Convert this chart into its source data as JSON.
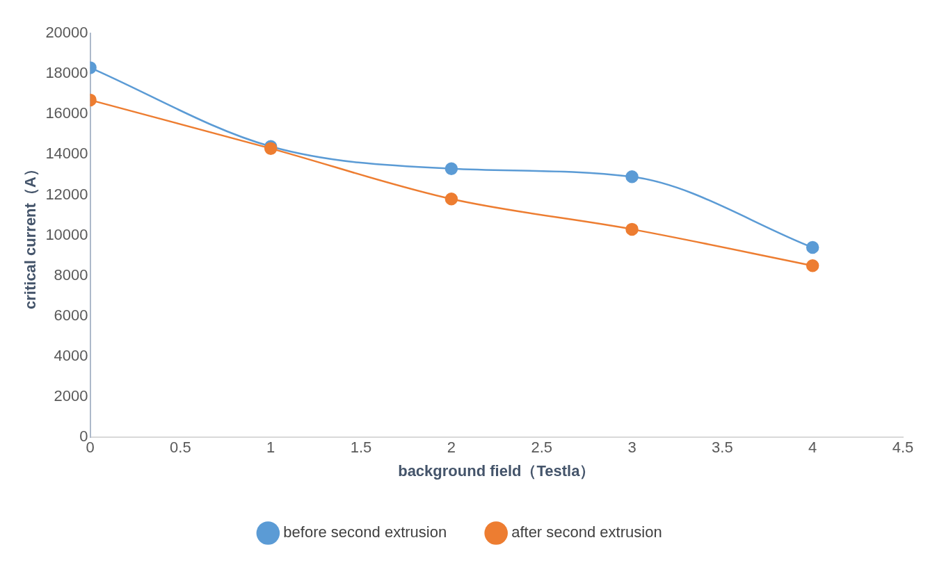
{
  "chart_data": {
    "type": "line",
    "xlabel": "background field（Testla）",
    "ylabel": "critical current（A）",
    "x": [
      0,
      1,
      2,
      3,
      4
    ],
    "series": [
      {
        "name": "before second extrusion",
        "color": "#5b9bd5",
        "values": [
          18300,
          14400,
          13300,
          12900,
          9400
        ]
      },
      {
        "name": "after second extrusion",
        "color": "#ed7d31",
        "values": [
          16700,
          14300,
          11800,
          10300,
          8500
        ]
      }
    ],
    "xlim": [
      0,
      4.5
    ],
    "xticks": [
      0,
      0.5,
      1,
      1.5,
      2,
      2.5,
      3,
      3.5,
      4,
      4.5
    ],
    "ylim": [
      0,
      20000
    ],
    "yticks": [
      0,
      2000,
      4000,
      6000,
      8000,
      10000,
      12000,
      14000,
      16000,
      18000,
      20000
    ],
    "grid": false,
    "legend": "bottom",
    "marker": "circle",
    "line_style": "solid"
  }
}
